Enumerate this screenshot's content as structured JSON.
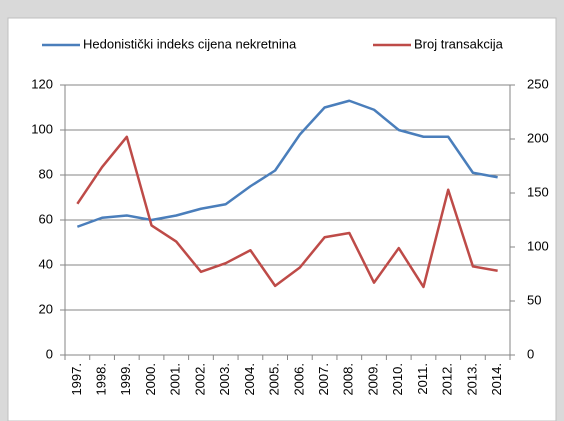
{
  "chart_data": {
    "type": "line",
    "categories": [
      "1997.",
      "1998.",
      "1999.",
      "2000.",
      "2001.",
      "2002.",
      "2003.",
      "2004.",
      "2005.",
      "2006.",
      "2007.",
      "2008.",
      "2009.",
      "2010.",
      "2011.",
      "2012.",
      "2013.",
      "2014."
    ],
    "series": [
      {
        "name": "Hedonistički indeks cijena nekretnina",
        "color": "#4a7ebb",
        "values": [
          57,
          61,
          62,
          60,
          62,
          65,
          67,
          75,
          82,
          98,
          110,
          113,
          109,
          100,
          97,
          97,
          81,
          79
        ]
      },
      {
        "name": "Broj transakcija",
        "color": "#be4b48",
        "axis": "y2",
        "values": [
          140,
          174,
          202,
          120,
          105,
          77,
          85,
          97,
          64,
          81,
          109,
          113,
          67,
          99,
          63,
          153,
          82,
          78
        ]
      }
    ],
    "ylim": [
      0,
      120
    ],
    "yticks": [
      0,
      20,
      40,
      60,
      80,
      100,
      120
    ],
    "y2lim": [
      0,
      250
    ],
    "y2ticks": [
      0,
      50,
      100,
      150,
      200,
      250
    ],
    "grid": true,
    "legend": "top"
  }
}
